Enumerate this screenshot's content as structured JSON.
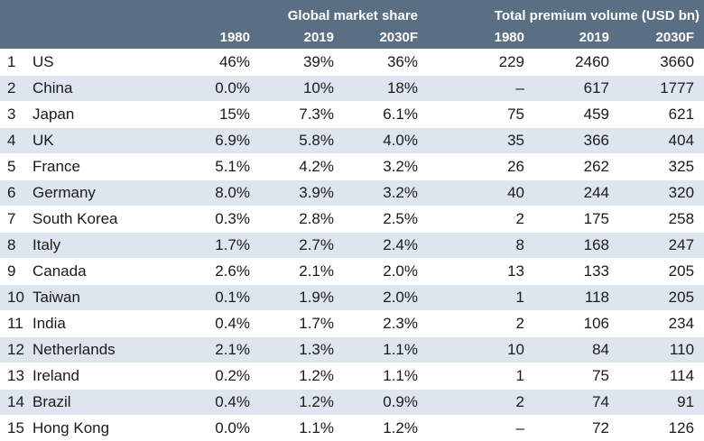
{
  "chart_data": {
    "type": "table",
    "group_headers": {
      "share": "Global market share",
      "volume": "Total premium volume (USD bn)"
    },
    "year_headers": {
      "share": [
        "1980",
        "2019",
        "2030F"
      ],
      "volume": [
        "1980",
        "2019",
        "2030F"
      ]
    },
    "rows": [
      {
        "rank": "1",
        "country": "US",
        "share": [
          "46%",
          "39%",
          "36%"
        ],
        "volume": [
          "229",
          "2460",
          "3660"
        ]
      },
      {
        "rank": "2",
        "country": "China",
        "share": [
          "0.0%",
          "10%",
          "18%"
        ],
        "volume": [
          "–",
          "617",
          "1777"
        ]
      },
      {
        "rank": "3",
        "country": "Japan",
        "share": [
          "15%",
          "7.3%",
          "6.1%"
        ],
        "volume": [
          "75",
          "459",
          "621"
        ]
      },
      {
        "rank": "4",
        "country": "UK",
        "share": [
          "6.9%",
          "5.8%",
          "4.0%"
        ],
        "volume": [
          "35",
          "366",
          "404"
        ]
      },
      {
        "rank": "5",
        "country": "France",
        "share": [
          "5.1%",
          "4.2%",
          "3.2%"
        ],
        "volume": [
          "26",
          "262",
          "325"
        ]
      },
      {
        "rank": "6",
        "country": "Germany",
        "share": [
          "8.0%",
          "3.9%",
          "3.2%"
        ],
        "volume": [
          "40",
          "244",
          "320"
        ]
      },
      {
        "rank": "7",
        "country": "South Korea",
        "share": [
          "0.3%",
          "2.8%",
          "2.5%"
        ],
        "volume": [
          "2",
          "175",
          "258"
        ]
      },
      {
        "rank": "8",
        "country": "Italy",
        "share": [
          "1.7%",
          "2.7%",
          "2.4%"
        ],
        "volume": [
          "8",
          "168",
          "247"
        ]
      },
      {
        "rank": "9",
        "country": "Canada",
        "share": [
          "2.6%",
          "2.1%",
          "2.0%"
        ],
        "volume": [
          "13",
          "133",
          "205"
        ]
      },
      {
        "rank": "10",
        "country": "Taiwan",
        "share": [
          "0.1%",
          "1.9%",
          "2.0%"
        ],
        "volume": [
          "1",
          "118",
          "205"
        ]
      },
      {
        "rank": "11",
        "country": "India",
        "share": [
          "0.4%",
          "1.7%",
          "2.3%"
        ],
        "volume": [
          "2",
          "106",
          "234"
        ]
      },
      {
        "rank": "12",
        "country": "Netherlands",
        "share": [
          "2.1%",
          "1.3%",
          "1.1%"
        ],
        "volume": [
          "10",
          "84",
          "110"
        ]
      },
      {
        "rank": "13",
        "country": "Ireland",
        "share": [
          "0.2%",
          "1.2%",
          "1.1%"
        ],
        "volume": [
          "1",
          "75",
          "114"
        ]
      },
      {
        "rank": "14",
        "country": "Brazil",
        "share": [
          "0.4%",
          "1.2%",
          "0.9%"
        ],
        "volume": [
          "2",
          "74",
          "91"
        ]
      },
      {
        "rank": "15",
        "country": "Hong Kong",
        "share": [
          "0.0%",
          "1.1%",
          "1.2%"
        ],
        "volume": [
          "–",
          "72",
          "126"
        ]
      }
    ],
    "colors": {
      "header_bg": "#5a6f84",
      "header_text": "#ffffff",
      "row_alt_bg": "#dde6ef",
      "row_bg": "#ffffff"
    }
  }
}
